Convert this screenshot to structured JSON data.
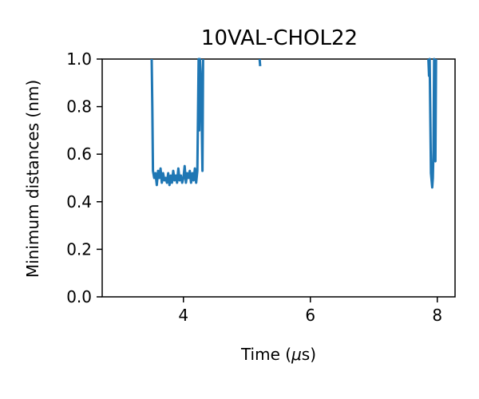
{
  "chart_data": {
    "type": "line",
    "title": "10VAL-CHOL22",
    "xlabel": "Time (μs)",
    "ylabel": "Minimum distances (nm)",
    "xlim": [
      2.72,
      8.28
    ],
    "ylim": [
      0.0,
      1.0
    ],
    "xticks": [
      4,
      6,
      8
    ],
    "xtick_labels": [
      "4",
      "6",
      "8"
    ],
    "yticks": [
      0.0,
      0.2,
      0.4,
      0.6,
      0.8,
      1.0
    ],
    "ytick_labels": [
      "0.0",
      "0.2",
      "0.4",
      "0.6",
      "0.8",
      "1.0"
    ],
    "grid": false,
    "series": [
      {
        "color": "#1f77b4",
        "segments": [
          [
            [
              3.5,
              1.0
            ],
            [
              3.51,
              0.8
            ],
            [
              3.52,
              0.53
            ],
            [
              3.54,
              0.5
            ],
            [
              3.56,
              0.52
            ],
            [
              3.58,
              0.47
            ],
            [
              3.6,
              0.53
            ],
            [
              3.62,
              0.5
            ],
            [
              3.64,
              0.54
            ],
            [
              3.66,
              0.48
            ],
            [
              3.68,
              0.52
            ],
            [
              3.7,
              0.49
            ],
            [
              3.72,
              0.5
            ],
            [
              3.74,
              0.48
            ],
            [
              3.76,
              0.52
            ],
            [
              3.78,
              0.47
            ],
            [
              3.8,
              0.51
            ],
            [
              3.82,
              0.48
            ],
            [
              3.84,
              0.53
            ],
            [
              3.86,
              0.49
            ],
            [
              3.88,
              0.51
            ],
            [
              3.9,
              0.48
            ],
            [
              3.92,
              0.54
            ],
            [
              3.94,
              0.49
            ],
            [
              3.96,
              0.51
            ],
            [
              3.98,
              0.48
            ],
            [
              4.0,
              0.5
            ],
            [
              4.02,
              0.55
            ],
            [
              4.04,
              0.48
            ],
            [
              4.06,
              0.52
            ],
            [
              4.08,
              0.5
            ],
            [
              4.1,
              0.53
            ],
            [
              4.12,
              0.48
            ],
            [
              4.14,
              0.52
            ],
            [
              4.16,
              0.49
            ],
            [
              4.18,
              0.54
            ],
            [
              4.2,
              0.48
            ],
            [
              4.22,
              0.53
            ],
            [
              4.24,
              1.0
            ],
            [
              4.25,
              0.7
            ],
            [
              4.26,
              1.0
            ],
            [
              4.28,
              0.9
            ],
            [
              4.3,
              0.53
            ],
            [
              4.31,
              1.0
            ]
          ],
          [
            [
              5.2,
              1.0
            ],
            [
              5.21,
              0.97
            ]
          ],
          [
            [
              7.86,
              1.0
            ],
            [
              7.87,
              0.93
            ],
            [
              7.88,
              1.0
            ],
            [
              7.9,
              0.52
            ],
            [
              7.91,
              0.49
            ],
            [
              7.92,
              0.46
            ],
            [
              7.93,
              0.5
            ],
            [
              7.94,
              0.62
            ],
            [
              7.95,
              1.0
            ],
            [
              7.96,
              0.58
            ],
            [
              7.97,
              0.57
            ],
            [
              7.98,
              1.0
            ]
          ]
        ]
      }
    ]
  }
}
